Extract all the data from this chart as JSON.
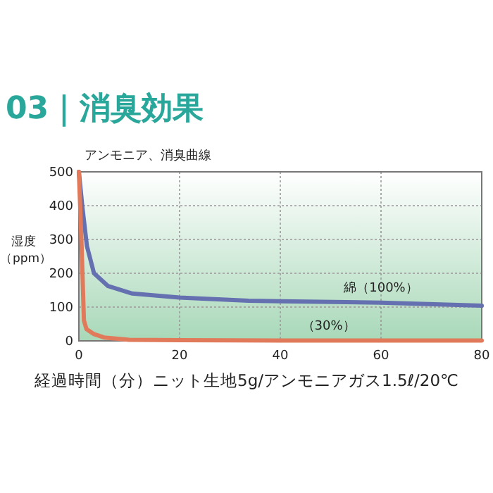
{
  "chart_data": {
    "type": "line",
    "title": "03｜消臭効果",
    "subtitle": "アンモニア、消臭曲線",
    "xlabel": "経過時間（分）ニット生地5g/アンモニアガス1.5ℓ/20℃",
    "ylabel": "湿度（ppm）",
    "xlim": [
      0,
      80
    ],
    "xticks": [
      0,
      20,
      40,
      60,
      80
    ],
    "ylim": [
      0,
      500
    ],
    "yticks": [
      0,
      100,
      200,
      300,
      400,
      500
    ],
    "grid": true,
    "marker": "none",
    "line_style": "solid",
    "series": [
      {
        "name": "綿（100%）",
        "color": "#6470b0",
        "x": [
          0,
          0.7,
          1.6,
          3,
          5.8,
          10.6,
          20,
          33.7,
          40,
          60,
          80
        ],
        "values": [
          500,
          395,
          280,
          200,
          162,
          140,
          128,
          119,
          117,
          113,
          104
        ]
      },
      {
        "name": "（30%）",
        "color": "#e07a5a",
        "x": [
          0,
          0.5,
          1,
          1.5,
          3,
          5,
          10,
          20,
          40,
          60,
          80
        ],
        "values": [
          500,
          300,
          60,
          35,
          20,
          10,
          3,
          2,
          1,
          1,
          1
        ]
      }
    ]
  }
}
